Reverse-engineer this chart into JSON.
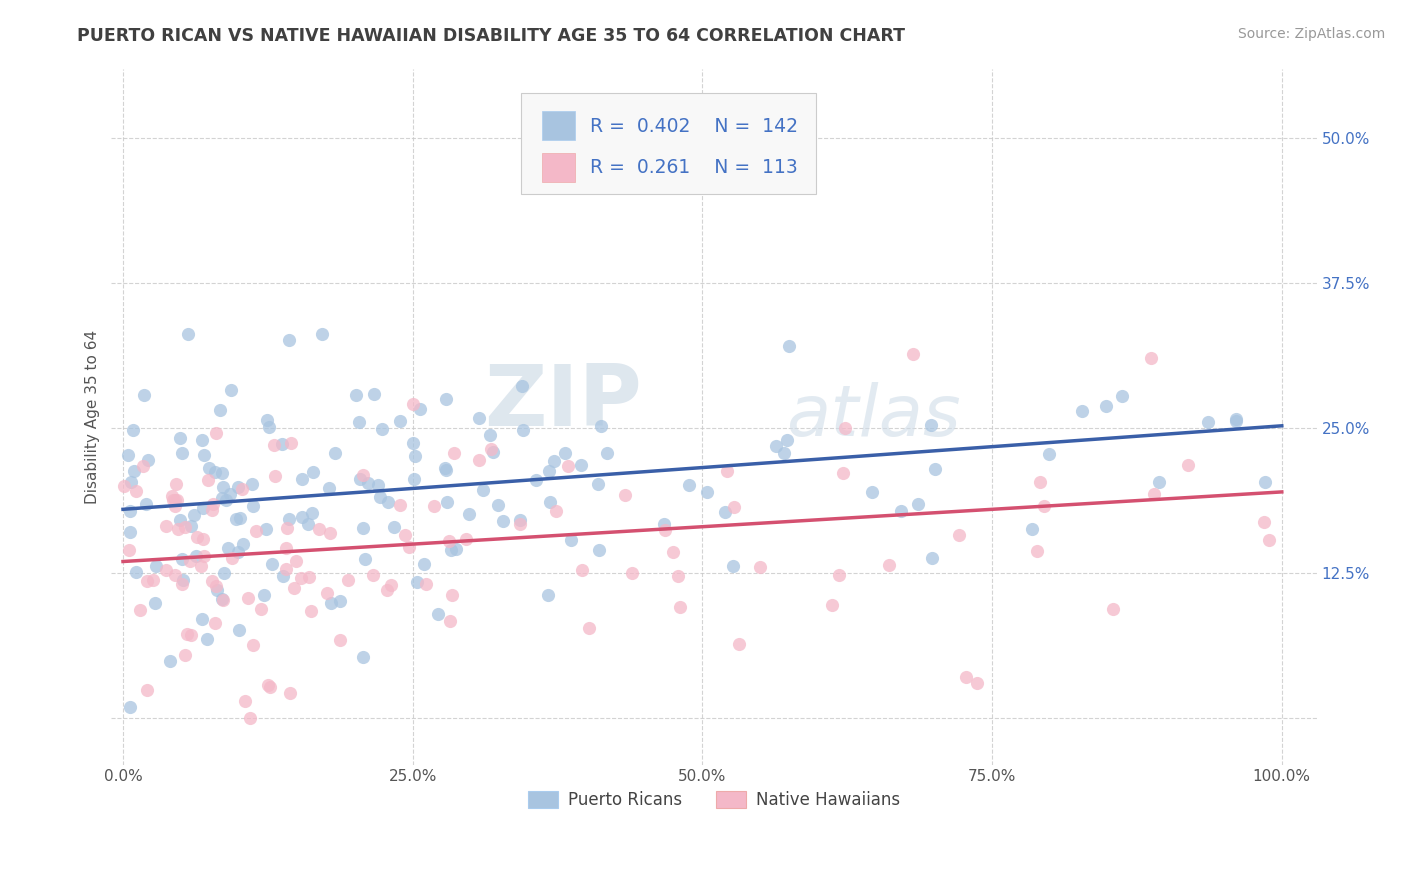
{
  "title": "PUERTO RICAN VS NATIVE HAWAIIAN DISABILITY AGE 35 TO 64 CORRELATION CHART",
  "source": "Source: ZipAtlas.com",
  "ylabel": "Disability Age 35 to 64",
  "blue_R": 0.402,
  "blue_N": 142,
  "pink_R": 0.261,
  "pink_N": 113,
  "blue_fill_color": "#a8c4e0",
  "pink_fill_color": "#f4b8c8",
  "blue_line_color": "#3a5fa8",
  "pink_line_color": "#d45070",
  "legend_label_blue": "Puerto Ricans",
  "legend_label_pink": "Native Hawaiians",
  "stat_label_color": "#4472c4",
  "background_color": "#ffffff",
  "grid_color": "#c8c8c8",
  "title_color": "#404040",
  "ytick_color": "#4472c4",
  "xtick_color": "#555555",
  "ylabel_color": "#555555",
  "watermark_zip": "ZIP",
  "watermark_atlas": "atlas",
  "blue_intercept": 0.18,
  "blue_slope": 0.072,
  "pink_intercept": 0.135,
  "pink_slope": 0.06
}
